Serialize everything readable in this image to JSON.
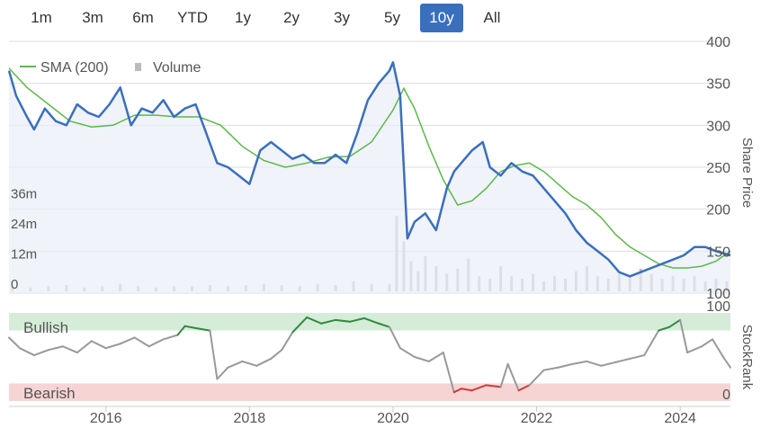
{
  "range_buttons": [
    {
      "label": "1m",
      "active": false
    },
    {
      "label": "3m",
      "active": false
    },
    {
      "label": "6m",
      "active": false
    },
    {
      "label": "YTD",
      "active": false
    },
    {
      "label": "1y",
      "active": false
    },
    {
      "label": "2y",
      "active": false
    },
    {
      "label": "3y",
      "active": false
    },
    {
      "label": "5y",
      "active": false
    },
    {
      "label": "10y",
      "active": true
    },
    {
      "label": "All",
      "active": false
    }
  ],
  "legend": {
    "sma_label": "SMA (200)",
    "volume_label": "Volume"
  },
  "colors": {
    "price_line": "#3a6fbd",
    "sma_line": "#5cb84a",
    "volume_bars": "#bbbbbb",
    "bullish_band": "#d5ecd9",
    "bearish_band": "#f7d4d4",
    "rank_bullish": "#2e8b3c",
    "rank_bearish": "#d03a3a",
    "rank_neutral": "#999999",
    "grid": "#dddddd"
  },
  "chart_data": [
    {
      "type": "line",
      "xlabel": "",
      "ylabel": "Share Price",
      "ylim": [
        100,
        400
      ],
      "y_ticks": [
        "400",
        "350",
        "300",
        "250",
        "200",
        "150",
        "100"
      ],
      "x_ticks": [
        "2016",
        "2018",
        "2020",
        "2022",
        "2024"
      ],
      "xlim": [
        2014.65,
        2024.7
      ],
      "grid": true,
      "legend_position": "top-left",
      "series": [
        {
          "name": "",
          "x": [
            2014.65,
            2014.75,
            2014.9,
            2015.0,
            2015.15,
            2015.3,
            2015.45,
            2015.6,
            2015.75,
            2015.9,
            2016.05,
            2016.2,
            2016.35,
            2016.5,
            2016.65,
            2016.8,
            2016.95,
            2017.1,
            2017.25,
            2017.4,
            2017.55,
            2017.7,
            2017.85,
            2018.0,
            2018.15,
            2018.3,
            2018.45,
            2018.6,
            2018.75,
            2018.9,
            2019.05,
            2019.2,
            2019.35,
            2019.5,
            2019.65,
            2019.8,
            2019.95,
            2020.0,
            2020.1,
            2020.2,
            2020.3,
            2020.45,
            2020.6,
            2020.75,
            2020.85,
            2020.95,
            2021.1,
            2021.25,
            2021.35,
            2021.5,
            2021.65,
            2021.8,
            2021.95,
            2022.1,
            2022.25,
            2022.4,
            2022.55,
            2022.7,
            2022.85,
            2023.0,
            2023.15,
            2023.3,
            2023.45,
            2023.6,
            2023.75,
            2023.9,
            2024.05,
            2024.2,
            2024.35,
            2024.5,
            2024.7
          ],
          "values": [
            365,
            335,
            310,
            295,
            320,
            305,
            300,
            325,
            315,
            310,
            325,
            345,
            300,
            320,
            315,
            330,
            310,
            320,
            325,
            290,
            255,
            250,
            240,
            230,
            270,
            280,
            270,
            260,
            265,
            255,
            255,
            265,
            255,
            290,
            330,
            350,
            365,
            375,
            335,
            165,
            185,
            195,
            175,
            225,
            245,
            255,
            270,
            280,
            250,
            240,
            255,
            245,
            240,
            225,
            210,
            195,
            175,
            160,
            150,
            140,
            125,
            120,
            125,
            130,
            135,
            140,
            145,
            155,
            155,
            150,
            145
          ]
        },
        {
          "name": "SMA (200)",
          "x": [
            2014.65,
            2014.9,
            2015.2,
            2015.5,
            2015.8,
            2016.1,
            2016.4,
            2016.7,
            2017.0,
            2017.3,
            2017.6,
            2017.9,
            2018.2,
            2018.5,
            2018.8,
            2019.1,
            2019.4,
            2019.7,
            2020.0,
            2020.15,
            2020.3,
            2020.5,
            2020.7,
            2020.9,
            2021.1,
            2021.3,
            2021.5,
            2021.7,
            2021.9,
            2022.1,
            2022.3,
            2022.5,
            2022.7,
            2022.9,
            2023.1,
            2023.3,
            2023.5,
            2023.7,
            2023.9,
            2024.1,
            2024.3,
            2024.5,
            2024.7
          ],
          "values": [
            368,
            345,
            325,
            305,
            298,
            300,
            312,
            312,
            310,
            310,
            300,
            275,
            258,
            250,
            255,
            262,
            263,
            280,
            318,
            344,
            320,
            275,
            235,
            205,
            210,
            225,
            245,
            252,
            255,
            245,
            230,
            215,
            205,
            190,
            170,
            155,
            145,
            135,
            130,
            130,
            132,
            138,
            150
          ]
        }
      ]
    },
    {
      "type": "bar",
      "ylabel": "",
      "y_ticks": [
        "36m",
        "24m",
        "12m",
        "0"
      ],
      "ylim": [
        0,
        48
      ],
      "series": [
        {
          "name": "Volume",
          "x": [
            2014.7,
            2014.95,
            2015.2,
            2015.45,
            2015.7,
            2015.95,
            2016.2,
            2016.45,
            2016.7,
            2016.95,
            2017.2,
            2017.45,
            2017.7,
            2017.95,
            2018.2,
            2018.45,
            2018.7,
            2018.95,
            2019.2,
            2019.45,
            2019.7,
            2019.95,
            2020.05,
            2020.15,
            2020.25,
            2020.35,
            2020.45,
            2020.6,
            2020.75,
            2020.9,
            2021.05,
            2021.2,
            2021.35,
            2021.5,
            2021.65,
            2021.8,
            2021.95,
            2022.1,
            2022.25,
            2022.4,
            2022.55,
            2022.7,
            2022.85,
            2023.0,
            2023.15,
            2023.3,
            2023.45,
            2023.6,
            2023.75,
            2023.9,
            2024.05,
            2024.2,
            2024.35,
            2024.5,
            2024.65
          ],
          "values": [
            2,
            1.5,
            2,
            2.5,
            1.5,
            2,
            3,
            2,
            1.5,
            2,
            2,
            2.5,
            2,
            2.5,
            3,
            2.5,
            2,
            3,
            2.5,
            4,
            3,
            3,
            30,
            20,
            12,
            8,
            14,
            10,
            7,
            9,
            13,
            6,
            5,
            10,
            6,
            5,
            7,
            4,
            6,
            5,
            8,
            10,
            6,
            5,
            7,
            6,
            9,
            7,
            5,
            6,
            5,
            6,
            4,
            5,
            4
          ]
        }
      ]
    },
    {
      "type": "line",
      "ylabel": "StockRank",
      "y_ticks": [
        "100",
        "0"
      ],
      "ylim": [
        0,
        100
      ],
      "band_labels": {
        "bullish": "Bullish",
        "bearish": "Bearish"
      },
      "bullish_threshold": 80,
      "bearish_threshold": 20,
      "series": [
        {
          "name": "",
          "x": [
            2014.65,
            2014.8,
            2015.0,
            2015.2,
            2015.4,
            2015.6,
            2015.8,
            2016.0,
            2016.2,
            2016.4,
            2016.6,
            2016.8,
            2017.0,
            2017.1,
            2017.3,
            2017.45,
            2017.55,
            2017.7,
            2017.9,
            2018.1,
            2018.3,
            2018.45,
            2018.6,
            2018.8,
            2019.0,
            2019.2,
            2019.4,
            2019.6,
            2019.8,
            2019.95,
            2020.1,
            2020.3,
            2020.5,
            2020.7,
            2020.85,
            2020.95,
            2021.1,
            2021.3,
            2021.5,
            2021.6,
            2021.75,
            2021.9,
            2022.1,
            2022.3,
            2022.5,
            2022.7,
            2022.9,
            2023.1,
            2023.3,
            2023.5,
            2023.7,
            2023.85,
            2024.0,
            2024.1,
            2024.3,
            2024.45,
            2024.6,
            2024.7
          ],
          "values": [
            72,
            60,
            52,
            58,
            62,
            55,
            68,
            60,
            65,
            72,
            62,
            70,
            75,
            85,
            82,
            80,
            25,
            38,
            45,
            40,
            48,
            58,
            78,
            95,
            88,
            92,
            90,
            94,
            88,
            84,
            60,
            50,
            45,
            55,
            10,
            14,
            12,
            18,
            16,
            42,
            12,
            18,
            35,
            38,
            42,
            45,
            40,
            44,
            48,
            52,
            80,
            84,
            92,
            55,
            62,
            70,
            50,
            38
          ]
        }
      ]
    }
  ]
}
